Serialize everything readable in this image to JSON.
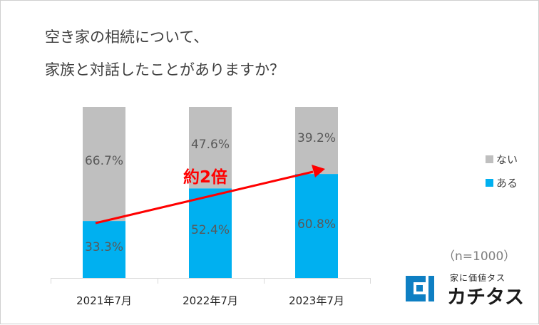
{
  "title": {
    "line1": "空き家の相続について、",
    "line2": "家族と対話したことがありますか？"
  },
  "chart_data": {
    "type": "bar",
    "stacked": true,
    "categories": [
      "2021年7月",
      "2022年7月",
      "2023年7月"
    ],
    "series": [
      {
        "name": "ある",
        "values": [
          33.3,
          52.4,
          60.8
        ],
        "color": "#00b0f0"
      },
      {
        "name": "ない",
        "values": [
          66.7,
          47.6,
          39.2
        ],
        "color": "#bfbfbf"
      }
    ],
    "labels": {
      "ある": [
        "33.3%",
        "52.4%",
        "60.8%"
      ],
      "ない": [
        "66.7%",
        "47.6%",
        "39.2%"
      ]
    },
    "ylim": [
      0,
      100
    ],
    "legend_position": "right",
    "annotation": {
      "text": "約2倍",
      "color": "#ff0000"
    },
    "note": "（n=1000）"
  },
  "logo": {
    "subtitle": "家に価値タス",
    "name": "カチタス",
    "color": "#0e7fc3"
  }
}
